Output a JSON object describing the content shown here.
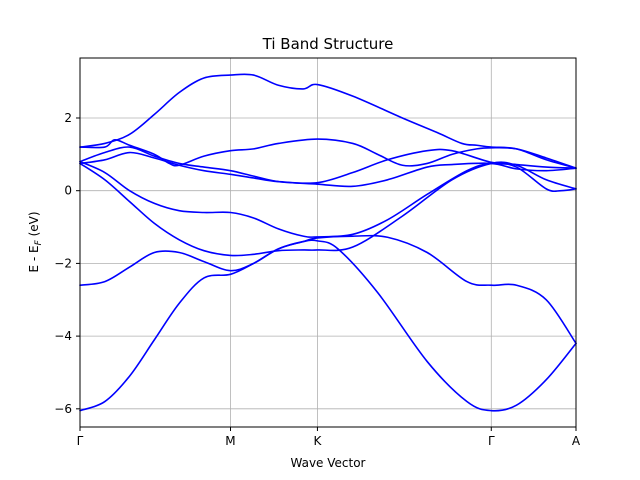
{
  "chart_data": {
    "type": "line",
    "title": "Ti Band Structure",
    "xlabel": "Wave Vector",
    "ylabel": "E - E_F (eV)",
    "ylabel_main": "E - E",
    "ylabel_sub": "F",
    "ylabel_unit": " (eV)",
    "xlim": [
      0,
      1.0
    ],
    "ylim": [
      -6.5,
      3.65
    ],
    "grid": true,
    "line_color": "#0000ff",
    "x_ticks": [
      {
        "pos": 0.0,
        "label": "Γ"
      },
      {
        "pos": 0.3034,
        "label": "M"
      },
      {
        "pos": 0.4787,
        "label": "K"
      },
      {
        "pos": 0.8292,
        "label": "Γ"
      },
      {
        "pos": 1.0,
        "label": "A"
      }
    ],
    "y_ticks": [
      {
        "value": -6,
        "label": "−6"
      },
      {
        "value": -4,
        "label": "−4"
      },
      {
        "value": -2,
        "label": "−2"
      },
      {
        "value": 0,
        "label": "0"
      },
      {
        "value": 2,
        "label": "2"
      }
    ],
    "series": [
      {
        "points": [
          [
            0,
            -6.05
          ],
          [
            0.05,
            -5.8
          ],
          [
            0.1,
            -5.1
          ],
          [
            0.15,
            -4.1
          ],
          [
            0.2,
            -3.1
          ],
          [
            0.25,
            -2.4
          ],
          [
            0.3034,
            -2.3
          ],
          [
            0.35,
            -2.0
          ],
          [
            0.4,
            -1.6
          ],
          [
            0.45,
            -1.4
          ],
          [
            0.4787,
            -1.38
          ],
          [
            0.52,
            -1.6
          ],
          [
            0.6,
            -2.8
          ],
          [
            0.7,
            -4.7
          ],
          [
            0.78,
            -5.8
          ],
          [
            0.8292,
            -6.05
          ],
          [
            0.88,
            -5.9
          ],
          [
            0.94,
            -5.2
          ],
          [
            1.0,
            -4.2
          ]
        ]
      },
      {
        "points": [
          [
            0,
            -2.6
          ],
          [
            0.05,
            -2.5
          ],
          [
            0.1,
            -2.1
          ],
          [
            0.15,
            -1.7
          ],
          [
            0.2,
            -1.7
          ],
          [
            0.25,
            -1.95
          ],
          [
            0.3034,
            -2.2
          ],
          [
            0.35,
            -2.0
          ],
          [
            0.4,
            -1.6
          ],
          [
            0.45,
            -1.4
          ],
          [
            0.4787,
            -1.3
          ],
          [
            0.55,
            -1.25
          ],
          [
            0.62,
            -1.28
          ],
          [
            0.7,
            -1.7
          ],
          [
            0.78,
            -2.5
          ],
          [
            0.8292,
            -2.6
          ],
          [
            0.88,
            -2.6
          ],
          [
            0.94,
            -3.0
          ],
          [
            1.0,
            -4.2
          ]
        ]
      },
      {
        "points": [
          [
            0,
            0.75
          ],
          [
            0.05,
            0.3
          ],
          [
            0.1,
            -0.3
          ],
          [
            0.15,
            -0.9
          ],
          [
            0.2,
            -1.35
          ],
          [
            0.25,
            -1.65
          ],
          [
            0.3034,
            -1.78
          ],
          [
            0.35,
            -1.75
          ],
          [
            0.4,
            -1.65
          ],
          [
            0.45,
            -1.63
          ],
          [
            0.4787,
            -1.63
          ],
          [
            0.55,
            -1.55
          ],
          [
            0.65,
            -0.7
          ],
          [
            0.75,
            0.3
          ],
          [
            0.8292,
            0.75
          ],
          [
            0.88,
            0.7
          ],
          [
            0.94,
            0.3
          ],
          [
            1.0,
            0.05
          ]
        ]
      },
      {
        "points": [
          [
            0,
            0.8
          ],
          [
            0.05,
            0.5
          ],
          [
            0.1,
            0.0
          ],
          [
            0.15,
            -0.35
          ],
          [
            0.2,
            -0.55
          ],
          [
            0.25,
            -0.6
          ],
          [
            0.3034,
            -0.6
          ],
          [
            0.35,
            -0.75
          ],
          [
            0.4,
            -1.05
          ],
          [
            0.45,
            -1.25
          ],
          [
            0.4787,
            -1.27
          ],
          [
            0.55,
            -1.2
          ],
          [
            0.62,
            -0.8
          ],
          [
            0.7,
            -0.1
          ],
          [
            0.78,
            0.55
          ],
          [
            0.8292,
            0.75
          ],
          [
            0.88,
            0.65
          ],
          [
            0.94,
            0.05
          ],
          [
            0.97,
            0.0
          ],
          [
            1.0,
            0.05
          ]
        ]
      },
      {
        "points": [
          [
            0,
            0.75
          ],
          [
            0.05,
            0.85
          ],
          [
            0.1,
            1.05
          ],
          [
            0.15,
            0.9
          ],
          [
            0.2,
            0.7
          ],
          [
            0.25,
            0.55
          ],
          [
            0.3034,
            0.45
          ],
          [
            0.35,
            0.35
          ],
          [
            0.4,
            0.25
          ],
          [
            0.4787,
            0.22
          ],
          [
            0.55,
            0.5
          ],
          [
            0.62,
            0.85
          ],
          [
            0.7,
            1.1
          ],
          [
            0.75,
            1.1
          ],
          [
            0.8292,
            0.78
          ],
          [
            0.88,
            0.72
          ],
          [
            0.94,
            0.65
          ],
          [
            1.0,
            0.62
          ]
        ]
      },
      {
        "points": [
          [
            0,
            0.8
          ],
          [
            0.05,
            1.05
          ],
          [
            0.1,
            1.2
          ],
          [
            0.15,
            0.95
          ],
          [
            0.2,
            0.75
          ],
          [
            0.25,
            0.65
          ],
          [
            0.3034,
            0.55
          ],
          [
            0.35,
            0.4
          ],
          [
            0.4,
            0.25
          ],
          [
            0.4787,
            0.18
          ],
          [
            0.55,
            0.12
          ],
          [
            0.62,
            0.3
          ],
          [
            0.7,
            0.65
          ],
          [
            0.75,
            0.72
          ],
          [
            0.8292,
            0.75
          ],
          [
            0.88,
            0.6
          ],
          [
            0.94,
            0.55
          ],
          [
            1.0,
            0.62
          ]
        ]
      },
      {
        "points": [
          [
            0,
            1.2
          ],
          [
            0.05,
            1.2
          ],
          [
            0.07,
            1.4
          ],
          [
            0.1,
            1.25
          ],
          [
            0.15,
            1.0
          ],
          [
            0.18,
            0.75
          ],
          [
            0.2,
            0.7
          ],
          [
            0.25,
            0.95
          ],
          [
            0.3034,
            1.1
          ],
          [
            0.35,
            1.15
          ],
          [
            0.4,
            1.3
          ],
          [
            0.4787,
            1.42
          ],
          [
            0.55,
            1.3
          ],
          [
            0.6,
            1.0
          ],
          [
            0.65,
            0.7
          ],
          [
            0.7,
            0.75
          ],
          [
            0.75,
            1.0
          ],
          [
            0.8,
            1.15
          ],
          [
            0.8292,
            1.18
          ],
          [
            0.88,
            1.15
          ],
          [
            0.94,
            0.9
          ],
          [
            1.0,
            0.62
          ]
        ]
      },
      {
        "points": [
          [
            0,
            1.2
          ],
          [
            0.05,
            1.3
          ],
          [
            0.1,
            1.55
          ],
          [
            0.15,
            2.1
          ],
          [
            0.2,
            2.7
          ],
          [
            0.25,
            3.1
          ],
          [
            0.3034,
            3.18
          ],
          [
            0.35,
            3.18
          ],
          [
            0.4,
            2.9
          ],
          [
            0.45,
            2.8
          ],
          [
            0.4787,
            2.92
          ],
          [
            0.55,
            2.6
          ],
          [
            0.65,
            2.0
          ],
          [
            0.72,
            1.6
          ],
          [
            0.77,
            1.3
          ],
          [
            0.8,
            1.25
          ],
          [
            0.8292,
            1.2
          ],
          [
            0.88,
            1.15
          ],
          [
            0.94,
            0.85
          ],
          [
            1.0,
            0.62
          ]
        ]
      }
    ]
  }
}
